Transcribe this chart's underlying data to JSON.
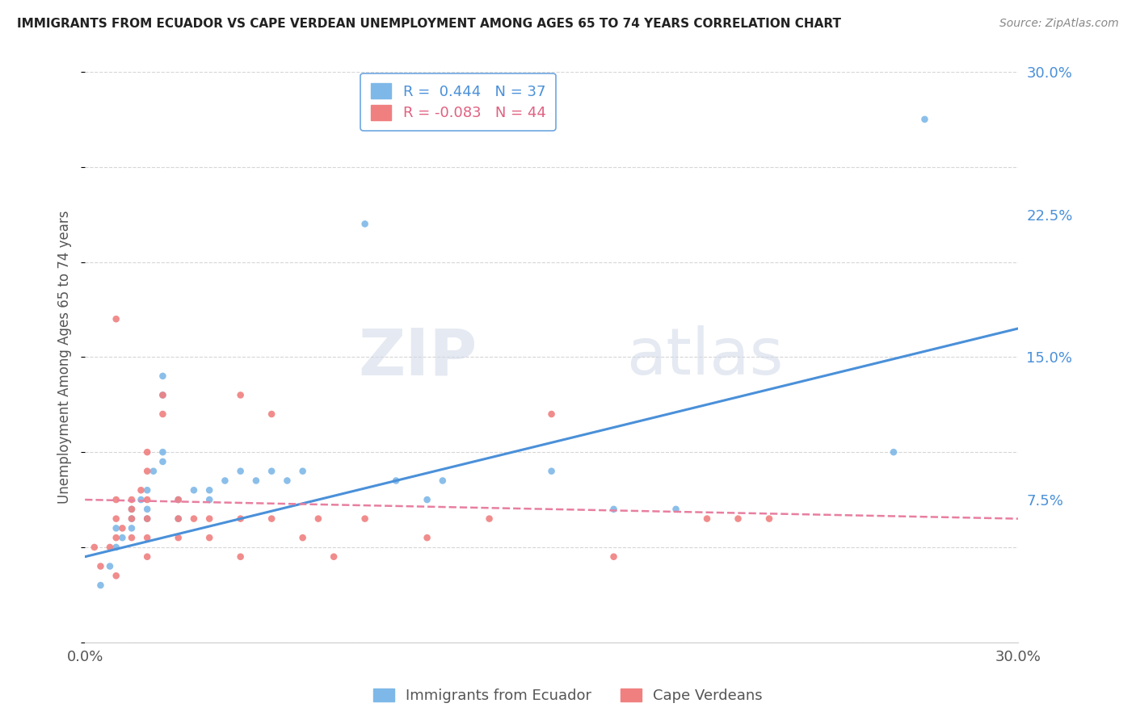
{
  "title": "IMMIGRANTS FROM ECUADOR VS CAPE VERDEAN UNEMPLOYMENT AMONG AGES 65 TO 74 YEARS CORRELATION CHART",
  "source": "Source: ZipAtlas.com",
  "ylabel": "Unemployment Among Ages 65 to 74 years",
  "legend_labels": [
    "Immigrants from Ecuador",
    "Cape Verdeans"
  ],
  "r_ecuador": 0.444,
  "n_ecuador": 37,
  "r_capeverdean": -0.083,
  "n_capeverdean": 44,
  "xmin": 0.0,
  "xmax": 0.3,
  "ymin": 0.0,
  "ymax": 0.3,
  "yticks": [
    0.0,
    0.075,
    0.15,
    0.225,
    0.3
  ],
  "ytick_labels": [
    "",
    "7.5%",
    "15.0%",
    "22.5%",
    "30.0%"
  ],
  "xticks": [
    0.0,
    0.3
  ],
  "xtick_labels": [
    "0.0%",
    "30.0%"
  ],
  "color_ecuador": "#7EB8E8",
  "color_capeverdean": "#F08080",
  "line_color_ecuador": "#4A90D9",
  "line_color_capeverdean": "#E87FA0",
  "grid_color": "#CCCCCC",
  "watermark_zip": "ZIP",
  "watermark_atlas": "atlas",
  "ecuador_scatter": [
    [
      0.005,
      0.03
    ],
    [
      0.008,
      0.04
    ],
    [
      0.01,
      0.05
    ],
    [
      0.01,
      0.06
    ],
    [
      0.012,
      0.055
    ],
    [
      0.015,
      0.06
    ],
    [
      0.015,
      0.065
    ],
    [
      0.015,
      0.07
    ],
    [
      0.018,
      0.075
    ],
    [
      0.02,
      0.065
    ],
    [
      0.02,
      0.07
    ],
    [
      0.02,
      0.08
    ],
    [
      0.022,
      0.09
    ],
    [
      0.025,
      0.095
    ],
    [
      0.025,
      0.1
    ],
    [
      0.025,
      0.13
    ],
    [
      0.025,
      0.14
    ],
    [
      0.03,
      0.065
    ],
    [
      0.03,
      0.075
    ],
    [
      0.035,
      0.08
    ],
    [
      0.04,
      0.075
    ],
    [
      0.04,
      0.08
    ],
    [
      0.045,
      0.085
    ],
    [
      0.05,
      0.09
    ],
    [
      0.055,
      0.085
    ],
    [
      0.06,
      0.09
    ],
    [
      0.065,
      0.085
    ],
    [
      0.07,
      0.09
    ],
    [
      0.09,
      0.22
    ],
    [
      0.1,
      0.085
    ],
    [
      0.11,
      0.075
    ],
    [
      0.115,
      0.085
    ],
    [
      0.15,
      0.09
    ],
    [
      0.17,
      0.07
    ],
    [
      0.19,
      0.07
    ],
    [
      0.26,
      0.1
    ],
    [
      0.27,
      0.275
    ]
  ],
  "capeverdean_scatter": [
    [
      0.003,
      0.05
    ],
    [
      0.005,
      0.04
    ],
    [
      0.008,
      0.05
    ],
    [
      0.01,
      0.035
    ],
    [
      0.01,
      0.055
    ],
    [
      0.01,
      0.065
    ],
    [
      0.01,
      0.075
    ],
    [
      0.01,
      0.17
    ],
    [
      0.012,
      0.06
    ],
    [
      0.015,
      0.055
    ],
    [
      0.015,
      0.065
    ],
    [
      0.015,
      0.07
    ],
    [
      0.015,
      0.075
    ],
    [
      0.018,
      0.08
    ],
    [
      0.02,
      0.045
    ],
    [
      0.02,
      0.055
    ],
    [
      0.02,
      0.065
    ],
    [
      0.02,
      0.075
    ],
    [
      0.02,
      0.09
    ],
    [
      0.02,
      0.1
    ],
    [
      0.025,
      0.12
    ],
    [
      0.025,
      0.13
    ],
    [
      0.03,
      0.055
    ],
    [
      0.03,
      0.065
    ],
    [
      0.03,
      0.075
    ],
    [
      0.035,
      0.065
    ],
    [
      0.04,
      0.055
    ],
    [
      0.04,
      0.065
    ],
    [
      0.05,
      0.045
    ],
    [
      0.05,
      0.065
    ],
    [
      0.05,
      0.13
    ],
    [
      0.06,
      0.065
    ],
    [
      0.06,
      0.12
    ],
    [
      0.07,
      0.055
    ],
    [
      0.075,
      0.065
    ],
    [
      0.08,
      0.045
    ],
    [
      0.09,
      0.065
    ],
    [
      0.11,
      0.055
    ],
    [
      0.13,
      0.065
    ],
    [
      0.15,
      0.12
    ],
    [
      0.17,
      0.045
    ],
    [
      0.2,
      0.065
    ],
    [
      0.21,
      0.065
    ],
    [
      0.22,
      0.065
    ]
  ],
  "ecuador_line_x": [
    0.0,
    0.3
  ],
  "ecuador_line_y": [
    0.045,
    0.165
  ],
  "capeverdean_line_x": [
    0.0,
    0.3
  ],
  "capeverdean_line_y": [
    0.075,
    0.065
  ]
}
